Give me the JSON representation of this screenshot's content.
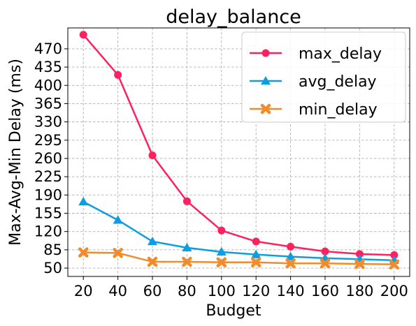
{
  "chart_data": {
    "type": "line",
    "title": "delay_balance",
    "xlabel": "Budget",
    "ylabel": "Max-Avg-Min Delay (ms)",
    "x": [
      20,
      40,
      60,
      80,
      100,
      120,
      140,
      160,
      180,
      200
    ],
    "xticks": [
      "20",
      "40",
      "60",
      "80",
      "100",
      "120",
      "140",
      "160",
      "180",
      "200"
    ],
    "yticks": [
      "50",
      "85",
      "120",
      "155",
      "190",
      "225",
      "260",
      "295",
      "330",
      "365",
      "400",
      "435",
      "470"
    ],
    "xlim": [
      11,
      209
    ],
    "ylim": [
      34,
      510
    ],
    "grid": true,
    "legend_position": "top-right",
    "series": [
      {
        "name": "max_delay",
        "marker": "circle",
        "color": "#ff2060",
        "values": [
          497,
          420,
          266,
          178,
          122,
          101,
          91,
          82,
          77,
          75
        ]
      },
      {
        "name": "avg_delay",
        "marker": "triangle",
        "color": "#0c9ee0",
        "values": [
          177,
          142,
          101,
          89,
          81,
          76,
          72,
          69,
          67,
          65
        ]
      },
      {
        "name": "min_delay",
        "marker": "x",
        "color": "#f28c2a",
        "values": [
          80,
          79,
          62,
          62,
          61,
          61,
          59,
          59,
          58,
          57
        ]
      }
    ]
  }
}
